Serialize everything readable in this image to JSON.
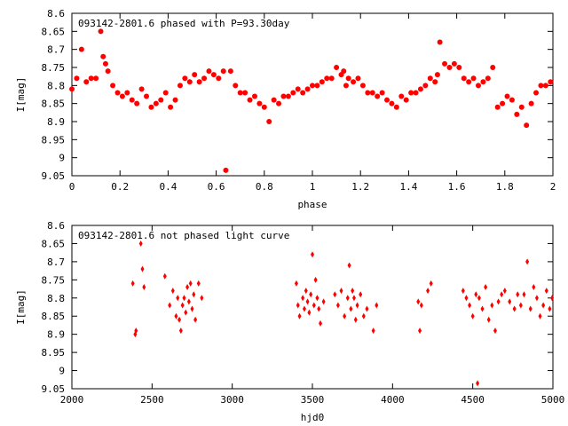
{
  "chart_data": [
    {
      "type": "scatter",
      "title": "093142-2801.6 phased with P=93.30day",
      "xlabel": "phase",
      "ylabel": "I[mag]",
      "xlim": [
        0,
        2
      ],
      "ylim": [
        8.6,
        9.05
      ],
      "y_inverted": true,
      "x_ticks": [
        "0",
        "0.2",
        "0.4",
        "0.6",
        "0.8",
        "1",
        "1.2",
        "1.4",
        "1.6",
        "1.8",
        "2"
      ],
      "y_ticks": [
        "8.6",
        "8.65",
        "8.7",
        "8.75",
        "8.8",
        "8.85",
        "8.9",
        "8.95",
        "9",
        "9.05"
      ],
      "marker_color": "#ff0000",
      "marker": "filled-circle",
      "series": [
        {
          "x": [
            0.0,
            0.02,
            0.04,
            0.06,
            0.08,
            0.1,
            0.12,
            0.13,
            0.14,
            0.15,
            0.17,
            0.19,
            0.21,
            0.23,
            0.25,
            0.27,
            0.29,
            0.31,
            0.33,
            0.35,
            0.37,
            0.39,
            0.41,
            0.43,
            0.45,
            0.47,
            0.49,
            0.51,
            0.53,
            0.55,
            0.57,
            0.59,
            0.61,
            0.63,
            0.64,
            0.66,
            0.68,
            0.7,
            0.72,
            0.74,
            0.76,
            0.78,
            0.8,
            0.82,
            0.84,
            0.86,
            0.88,
            0.9,
            0.92,
            0.94,
            0.96,
            0.98,
            1.0,
            1.02,
            1.04,
            1.06,
            1.08,
            1.1,
            1.12,
            1.13,
            1.14,
            1.15,
            1.17,
            1.19,
            1.21,
            1.23,
            1.25,
            1.27,
            1.29,
            1.31,
            1.33,
            1.35,
            1.37,
            1.39,
            1.41,
            1.43,
            1.45,
            1.47,
            1.49,
            1.51,
            1.52,
            1.53,
            1.55,
            1.57,
            1.59,
            1.61,
            1.63,
            1.65,
            1.67,
            1.69,
            1.71,
            1.73,
            1.75,
            1.77,
            1.79,
            1.81,
            1.83,
            1.85,
            1.87,
            1.89,
            1.91,
            1.93,
            1.95,
            1.97,
            1.99
          ],
          "y": [
            8.81,
            8.78,
            8.7,
            8.79,
            8.78,
            8.78,
            8.65,
            8.72,
            8.74,
            8.76,
            8.8,
            8.82,
            8.83,
            8.82,
            8.84,
            8.85,
            8.81,
            8.83,
            8.86,
            8.85,
            8.84,
            8.82,
            8.86,
            8.84,
            8.8,
            8.78,
            8.79,
            8.77,
            8.79,
            8.78,
            8.76,
            8.77,
            8.78,
            8.76,
            9.035,
            8.76,
            8.8,
            8.82,
            8.82,
            8.84,
            8.83,
            8.85,
            8.86,
            8.9,
            8.84,
            8.85,
            8.83,
            8.83,
            8.82,
            8.81,
            8.82,
            8.81,
            8.8,
            8.8,
            8.79,
            8.78,
            8.78,
            8.75,
            8.77,
            8.76,
            8.8,
            8.78,
            8.79,
            8.78,
            8.8,
            8.82,
            8.82,
            8.83,
            8.82,
            8.84,
            8.85,
            8.86,
            8.83,
            8.84,
            8.82,
            8.82,
            8.81,
            8.8,
            8.78,
            8.79,
            8.77,
            8.68,
            8.74,
            8.75,
            8.74,
            8.75,
            8.78,
            8.79,
            8.78,
            8.8,
            8.79,
            8.78,
            8.75,
            8.86,
            8.85,
            8.83,
            8.84,
            8.88,
            8.86,
            8.91,
            8.85,
            8.82,
            8.8,
            8.8,
            8.79
          ]
        }
      ]
    },
    {
      "type": "scatter",
      "title": "093142-2801.6 not phased light curve",
      "xlabel": "hjd0",
      "ylabel": "I[mag]",
      "xlim": [
        2000,
        5000
      ],
      "ylim": [
        8.6,
        9.05
      ],
      "y_inverted": true,
      "x_ticks": [
        "2000",
        "2500",
        "3000",
        "3500",
        "4000",
        "4500",
        "5000"
      ],
      "y_ticks": [
        "8.6",
        "8.65",
        "8.7",
        "8.75",
        "8.8",
        "8.85",
        "8.9",
        "8.95",
        "9",
        "9.05"
      ],
      "marker_color": "#ff0000",
      "marker": "filled-diamond",
      "series": [
        {
          "x": [
            2380,
            2395,
            2400,
            2430,
            2440,
            2450,
            2580,
            2610,
            2630,
            2650,
            2660,
            2670,
            2680,
            2690,
            2700,
            2710,
            2720,
            2730,
            2740,
            2750,
            2760,
            2770,
            2790,
            2810,
            3400,
            3410,
            3420,
            3440,
            3450,
            3460,
            3470,
            3480,
            3490,
            3500,
            3510,
            3520,
            3530,
            3540,
            3550,
            3570,
            3640,
            3660,
            3680,
            3700,
            3720,
            3730,
            3740,
            3750,
            3760,
            3770,
            3780,
            3800,
            3820,
            3840,
            3880,
            3900,
            4160,
            4170,
            4180,
            4220,
            4240,
            4440,
            4460,
            4480,
            4500,
            4520,
            4530,
            4540,
            4560,
            4580,
            4600,
            4620,
            4640,
            4660,
            4680,
            4700,
            4730,
            4760,
            4780,
            4800,
            4820,
            4840,
            4860,
            4880,
            4900,
            4920,
            4940,
            4960,
            4980,
            4995
          ],
          "y": [
            8.76,
            8.9,
            8.89,
            8.65,
            8.72,
            8.77,
            8.74,
            8.82,
            8.78,
            8.85,
            8.8,
            8.86,
            8.89,
            8.82,
            8.8,
            8.84,
            8.77,
            8.81,
            8.76,
            8.83,
            8.79,
            8.86,
            8.76,
            8.8,
            8.76,
            8.82,
            8.85,
            8.8,
            8.83,
            8.78,
            8.81,
            8.84,
            8.79,
            8.68,
            8.82,
            8.75,
            8.8,
            8.83,
            8.87,
            8.81,
            8.79,
            8.82,
            8.78,
            8.85,
            8.8,
            8.71,
            8.83,
            8.78,
            8.8,
            8.86,
            8.82,
            8.79,
            8.85,
            8.83,
            8.89,
            8.82,
            8.81,
            8.89,
            8.82,
            8.78,
            8.76,
            8.78,
            8.8,
            8.82,
            8.85,
            8.79,
            9.035,
            8.8,
            8.83,
            8.77,
            8.86,
            8.82,
            8.89,
            8.81,
            8.79,
            8.78,
            8.81,
            8.83,
            8.79,
            8.82,
            8.79,
            8.7,
            8.83,
            8.77,
            8.8,
            8.85,
            8.82,
            8.78,
            8.83,
            8.8
          ]
        }
      ]
    }
  ]
}
